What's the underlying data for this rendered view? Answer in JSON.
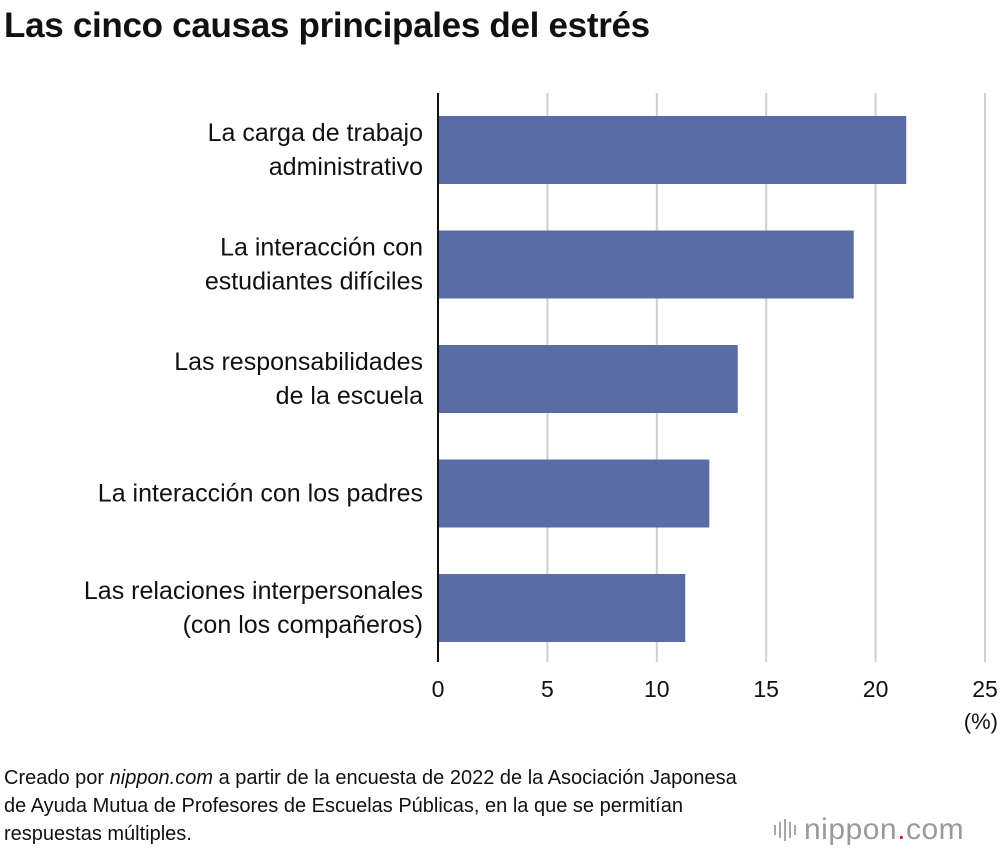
{
  "title": "Las cinco causas principales del estrés",
  "chart_data": {
    "type": "bar",
    "orientation": "horizontal",
    "categories": [
      [
        "La carga de trabajo",
        "administrativo"
      ],
      [
        "La interacción con",
        "estudiantes difíciles"
      ],
      [
        "Las responsabilidades",
        "de la escuela"
      ],
      [
        "La interacción con los padres"
      ],
      [
        "Las relaciones interpersonales",
        "(con los compañeros)"
      ]
    ],
    "values": [
      21.4,
      19.0,
      13.7,
      12.4,
      11.3
    ],
    "xlim": [
      0,
      25
    ],
    "xticks": [
      "0",
      "5",
      "10",
      "15",
      "20",
      "25"
    ],
    "xunit": "(%)",
    "grid": true,
    "bar_color": "#5a6ca6"
  },
  "source": {
    "prefix": "Creado por ",
    "site": "nippon.com",
    "suffix": " a partir de la encuesta de 2022 de la Asociación Japonesa de Ayuda Mutua de Profesores de Escuelas Públicas, en la que se permitían respuestas múltiples."
  },
  "logo": {
    "name": "nippon",
    "dot": ".",
    "tld": "com"
  }
}
